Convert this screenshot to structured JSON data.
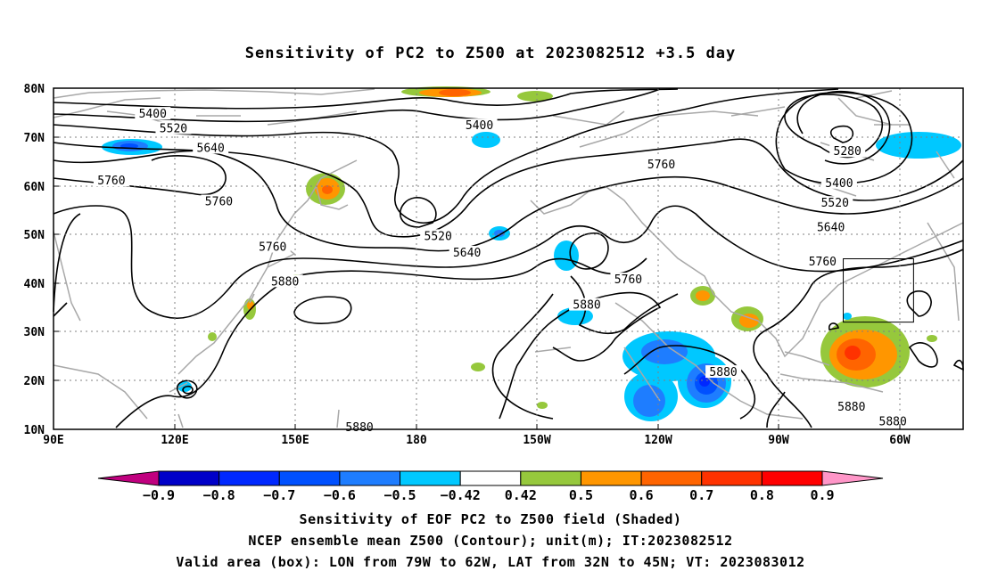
{
  "title": "Sensitivity of PC2 to Z500 at 2023082512 +3.5 day",
  "map": {
    "lat_labels": [
      "80N",
      "70N",
      "60N",
      "50N",
      "40N",
      "30N",
      "20N",
      "10N"
    ],
    "lon_labels": [
      "90E",
      "120E",
      "150E",
      "180",
      "150W",
      "120W",
      "90W",
      "60W"
    ],
    "extent": {
      "lon_min_deg_east": 90,
      "lon_max_deg_east": 310,
      "lat_min": 10,
      "lat_max": 80
    },
    "contour_labels": [
      {
        "text": "5400",
        "lon": 114,
        "lat": 74.5
      },
      {
        "text": "5520",
        "lon": 119,
        "lat": 71.5
      },
      {
        "text": "5640",
        "lon": 128,
        "lat": 67.5
      },
      {
        "text": "5760",
        "lon": 104,
        "lat": 60.8
      },
      {
        "text": "5760",
        "lon": 130,
        "lat": 56.5
      },
      {
        "text": "5760",
        "lon": 143,
        "lat": 47.2
      },
      {
        "text": "5880",
        "lon": 146,
        "lat": 40.1
      },
      {
        "text": "5400",
        "lon": 193,
        "lat": 72.1
      },
      {
        "text": "5520",
        "lon": 183,
        "lat": 49.4
      },
      {
        "text": "5640",
        "lon": 190,
        "lat": 46.0
      },
      {
        "text": "5760",
        "lon": 237,
        "lat": 64.1
      },
      {
        "text": "5760",
        "lon": 229,
        "lat": 40.5
      },
      {
        "text": "5880",
        "lon": 219,
        "lat": 35.3
      },
      {
        "text": "5880",
        "lon": 252,
        "lat": 21.5
      },
      {
        "text": "5880",
        "lon": 283,
        "lat": 14.4
      },
      {
        "text": "5880",
        "lon": 293,
        "lat": 11.4
      },
      {
        "text": "5880",
        "lon": 164,
        "lat": 10.2
      },
      {
        "text": "5280",
        "lon": 282,
        "lat": 66.8
      },
      {
        "text": "5400",
        "lon": 280,
        "lat": 60.3
      },
      {
        "text": "5520",
        "lon": 279,
        "lat": 56.2
      },
      {
        "text": "5640",
        "lon": 278,
        "lat": 51.2
      },
      {
        "text": "5760",
        "lon": 276,
        "lat": 44.2
      }
    ],
    "valid_box": {
      "lon_w": 79,
      "lon_e": 62,
      "lat_s": 32,
      "lat_n": 45
    }
  },
  "colorbar": {
    "levels": [
      "-0.9",
      "-0.8",
      "-0.7",
      "-0.6",
      "-0.5",
      "-0.42",
      "0.42",
      "0.5",
      "0.6",
      "0.7",
      "0.8",
      "0.9"
    ],
    "colors": [
      "#c0007f",
      "#0000c8",
      "#0028ff",
      "#0050ff",
      "#1e7dff",
      "#00c8ff",
      "#ffffff",
      "#96c83c",
      "#ff9600",
      "#ff6400",
      "#ff3200",
      "#ff0000",
      "#ff96c8"
    ]
  },
  "captions": {
    "line1": "Sensitivity of EOF PC2 to Z500 field (Shaded)",
    "line2": "NCEP ensemble mean Z500 (Contour); unit(m); IT:2023082512",
    "line3": "Valid area (box): LON from 79W to 62W, LAT from 32N to 45N; VT: 2023083012"
  }
}
